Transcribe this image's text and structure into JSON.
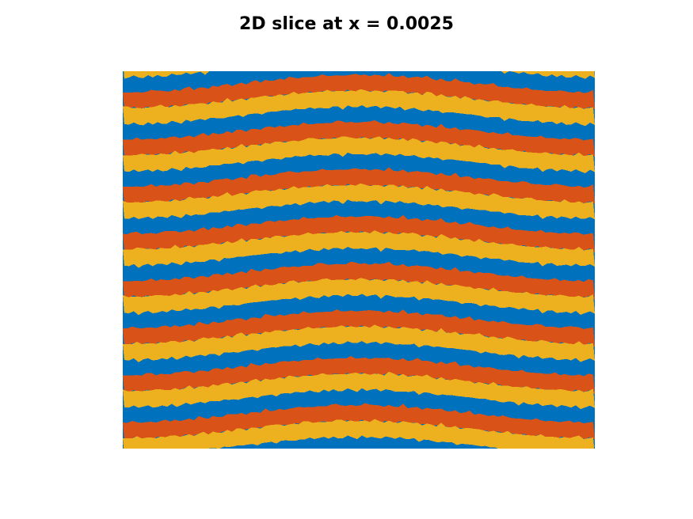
{
  "title": "2D slice at x = 0.0025",
  "chart_data": {
    "type": "heatmap",
    "title": "2D slice at x = 0.0025",
    "xlabel": "",
    "ylabel": "",
    "axes_visible": false,
    "grid": false,
    "colors": [
      "#0072bd",
      "#d95319",
      "#edb120"
    ],
    "band_cycle": [
      "blue",
      "orange",
      "yellow"
    ],
    "num_band_cycles": 8,
    "pattern": "horizontal bands curving into arches, symmetric about the vertical center, mirrored at left and right edges"
  }
}
